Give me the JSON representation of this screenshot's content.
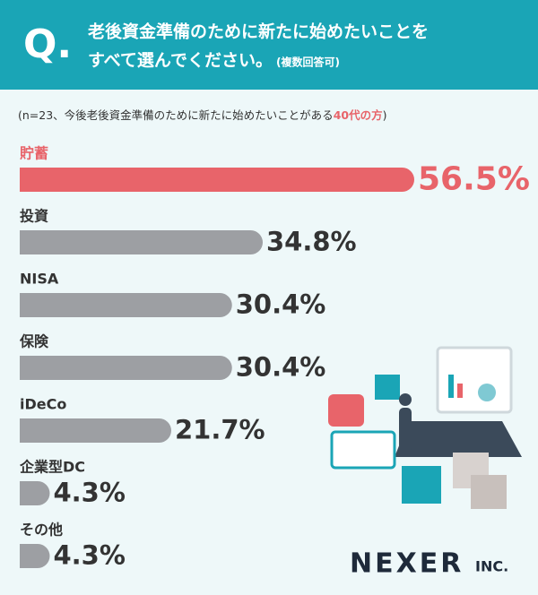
{
  "chart_data": {
    "type": "bar",
    "question_mark": "Q.",
    "title": [
      "老後資金準備のために新たに始めたいことを",
      "すべて選んでください。"
    ],
    "title_note": "(複数回答可)",
    "subtitle": [
      "(n=23、今後老後資金準備のために新たに始めたいことがある",
      "40代の方",
      ")"
    ],
    "categories": [
      "貯蓄",
      "投資",
      "NISA",
      "保険",
      "iDeCo",
      "企業型DC",
      "その他"
    ],
    "values": [
      56.5,
      34.8,
      30.4,
      30.4,
      21.7,
      4.3,
      4.3
    ],
    "value_labels": [
      "56.5%",
      "34.8%",
      "30.4%",
      "30.4%",
      "21.7%",
      "4.3%",
      "4.3%"
    ],
    "colors": [
      "#e8646a",
      "#9d9fa3",
      "#9d9fa3",
      "#9d9fa3",
      "#9d9fa3",
      "#9d9fa3",
      "#9d9fa3"
    ],
    "logo": [
      "NEXER",
      "INC."
    ]
  }
}
